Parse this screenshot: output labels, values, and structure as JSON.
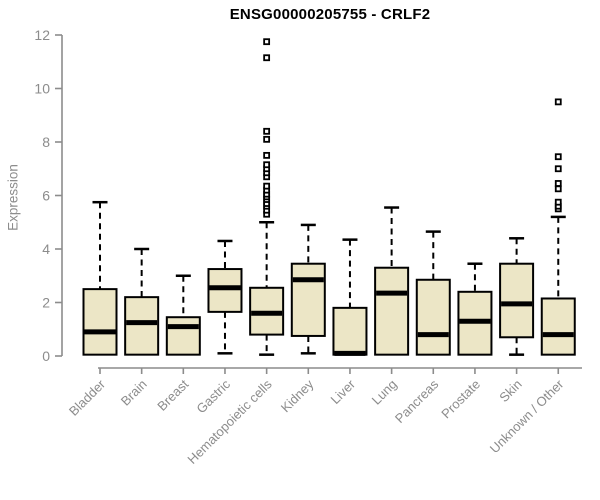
{
  "colors": {
    "box_fill": "#ECE6C6",
    "box_stroke": "#000000",
    "axis": "#8c8c8c",
    "label_gray": "#8c8c8c",
    "title": "#000000",
    "background": "#ffffff"
  },
  "chart_data": {
    "type": "boxplot",
    "title": "ENSG00000205755 - CRLF2",
    "xlabel": "",
    "ylabel": "Expression",
    "ylim": [
      0,
      12
    ],
    "yticks": [
      0,
      2,
      4,
      6,
      8,
      10,
      12
    ],
    "grid": false,
    "legend": false,
    "categories": [
      "Bladder",
      "Brain",
      "Breast",
      "Gastric",
      "Hematopoietic cells",
      "Kidney",
      "Liver",
      "Lung",
      "Pancreas",
      "Prostate",
      "Skin",
      "Unknown / Other"
    ],
    "boxes": [
      {
        "category": "Bladder",
        "low": 0.05,
        "q1": 0.05,
        "median": 0.9,
        "q3": 2.5,
        "high": 5.75,
        "outliers": []
      },
      {
        "category": "Brain",
        "low": 0.05,
        "q1": 0.05,
        "median": 1.25,
        "q3": 2.2,
        "high": 4.0,
        "outliers": []
      },
      {
        "category": "Breast",
        "low": 0.05,
        "q1": 0.05,
        "median": 1.1,
        "q3": 1.45,
        "high": 3.0,
        "outliers": []
      },
      {
        "category": "Gastric",
        "low": 0.1,
        "q1": 1.65,
        "median": 2.55,
        "q3": 3.25,
        "high": 4.3,
        "outliers": []
      },
      {
        "category": "Hematopoietic cells",
        "low": 0.05,
        "q1": 0.8,
        "median": 1.6,
        "q3": 2.55,
        "high": 5.0,
        "outliers": [
          5.3,
          5.45,
          5.6,
          5.7,
          5.85,
          5.95,
          6.05,
          6.2,
          6.35,
          6.7,
          6.85,
          7.0,
          7.15,
          7.5,
          8.1,
          8.4,
          11.15,
          11.75
        ]
      },
      {
        "category": "Kidney",
        "low": 0.1,
        "q1": 0.75,
        "median": 2.85,
        "q3": 3.45,
        "high": 4.9,
        "outliers": []
      },
      {
        "category": "Liver",
        "low": 0.05,
        "q1": 0.05,
        "median": 0.1,
        "q3": 1.8,
        "high": 4.35,
        "outliers": []
      },
      {
        "category": "Lung",
        "low": 0.05,
        "q1": 0.05,
        "median": 2.35,
        "q3": 3.3,
        "high": 5.55,
        "outliers": []
      },
      {
        "category": "Pancreas",
        "low": 0.05,
        "q1": 0.05,
        "median": 0.8,
        "q3": 2.85,
        "high": 4.65,
        "outliers": []
      },
      {
        "category": "Prostate",
        "low": 0.05,
        "q1": 0.05,
        "median": 1.3,
        "q3": 2.4,
        "high": 3.45,
        "outliers": []
      },
      {
        "category": "Skin",
        "low": 0.05,
        "q1": 0.7,
        "median": 1.95,
        "q3": 3.45,
        "high": 4.4,
        "outliers": []
      },
      {
        "category": "Unknown / Other",
        "low": 0.05,
        "q1": 0.05,
        "median": 0.8,
        "q3": 2.15,
        "high": 5.2,
        "outliers": [
          5.5,
          5.6,
          5.75,
          6.25,
          6.45,
          7.0,
          7.45,
          9.5
        ]
      }
    ]
  }
}
